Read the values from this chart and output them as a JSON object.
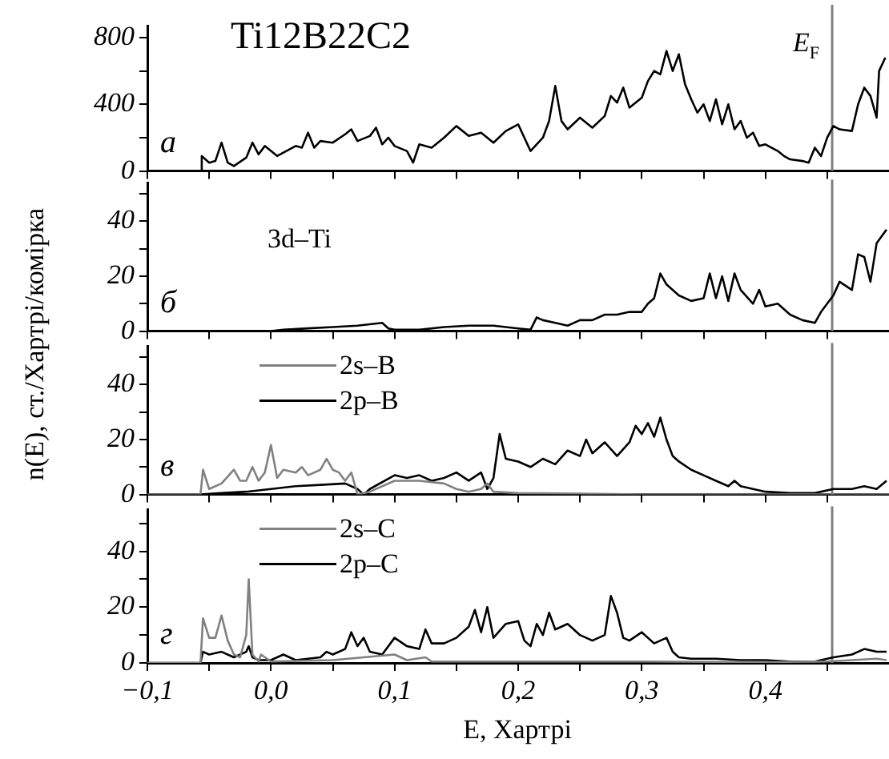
{
  "chart_data": [
    {
      "type": "line",
      "title": "Ti12B22C2",
      "ylabel": "n(E), ст./Хартрі/комірка",
      "annotations": [
        "а"
      ],
      "xlim": [
        -0.1,
        0.5
      ],
      "xticks": [
        {
          "value": -0.1,
          "label": null
        },
        {
          "value": -0.05,
          "label": null
        },
        {
          "value": 0,
          "label": null
        },
        {
          "value": 0.05,
          "label": null
        },
        {
          "value": 0.1,
          "label": null
        },
        {
          "value": 0.15,
          "label": null
        },
        {
          "value": 0.2,
          "label": null
        },
        {
          "value": 0.25,
          "label": null
        },
        {
          "value": 0.3,
          "label": null
        },
        {
          "value": 0.35,
          "label": null
        },
        {
          "value": 0.4,
          "label": null
        },
        {
          "value": 0.45,
          "label": null
        }
      ],
      "ylim": [
        0,
        870
      ],
      "yticks": [
        0,
        {
          "value": 200,
          "label": null
        },
        400,
        {
          "value": 600,
          "label": null
        },
        800
      ],
      "tick_labels": "y",
      "ref_lines": [
        {
          "axis": "x",
          "value": 0.454,
          "label": "E$_{F}$",
          "color": "#808080"
        }
      ],
      "series": [
        {
          "color": "#000000",
          "x": [
            -0.1,
            -0.057,
            -0.056,
            -0.05,
            -0.045,
            -0.04,
            -0.035,
            -0.03,
            -0.02,
            -0.015,
            -0.01,
            -0.005,
            0.0,
            0.005,
            0.01,
            0.02,
            0.025,
            0.03,
            0.035,
            0.04,
            0.05,
            0.06,
            0.065,
            0.07,
            0.08,
            0.085,
            0.09,
            0.095,
            0.1,
            0.11,
            0.115,
            0.12,
            0.13,
            0.14,
            0.15,
            0.16,
            0.17,
            0.18,
            0.19,
            0.2,
            0.205,
            0.21,
            0.22,
            0.225,
            0.23,
            0.235,
            0.24,
            0.25,
            0.26,
            0.27,
            0.275,
            0.28,
            0.285,
            0.29,
            0.3,
            0.305,
            0.31,
            0.315,
            0.32,
            0.325,
            0.33,
            0.335,
            0.34,
            0.345,
            0.35,
            0.355,
            0.36,
            0.365,
            0.37,
            0.375,
            0.38,
            0.385,
            0.39,
            0.395,
            0.4,
            0.41,
            0.415,
            0.42,
            0.43,
            0.435,
            0.44,
            0.445,
            0.45,
            0.455,
            0.46,
            0.47,
            0.475,
            0.48,
            0.485,
            0.49,
            0.492,
            0.497
          ],
          "values": [
            0,
            0,
            90,
            50,
            60,
            170,
            50,
            30,
            80,
            170,
            100,
            150,
            120,
            90,
            110,
            150,
            140,
            230,
            140,
            180,
            170,
            220,
            250,
            180,
            210,
            260,
            160,
            200,
            150,
            120,
            50,
            160,
            140,
            200,
            270,
            210,
            230,
            170,
            240,
            280,
            200,
            120,
            200,
            300,
            510,
            300,
            250,
            320,
            260,
            330,
            450,
            410,
            500,
            380,
            440,
            540,
            600,
            580,
            720,
            600,
            700,
            520,
            430,
            350,
            400,
            300,
            430,
            280,
            400,
            250,
            300,
            200,
            230,
            150,
            160,
            120,
            90,
            70,
            60,
            50,
            140,
            90,
            200,
            270,
            250,
            240,
            400,
            500,
            450,
            320,
            600,
            680
          ]
        }
      ]
    },
    {
      "type": "line",
      "annotations": [
        "б"
      ],
      "xlim": [
        -0.1,
        0.5
      ],
      "xticks": [
        {
          "value": -0.1,
          "label": null
        },
        {
          "value": -0.05,
          "label": null
        },
        {
          "value": 0,
          "label": null
        },
        {
          "value": 0.05,
          "label": null
        },
        {
          "value": 0.1,
          "label": null
        },
        {
          "value": 0.15,
          "label": null
        },
        {
          "value": 0.2,
          "label": null
        },
        {
          "value": 0.25,
          "label": null
        },
        {
          "value": 0.3,
          "label": null
        },
        {
          "value": 0.35,
          "label": null
        },
        {
          "value": 0.4,
          "label": null
        },
        {
          "value": 0.45,
          "label": null
        }
      ],
      "ylim": [
        0,
        54
      ],
      "yticks": [
        0,
        {
          "value": 10,
          "label": null
        },
        20,
        {
          "value": 30,
          "label": null
        },
        40,
        {
          "value": 50,
          "label": null
        }
      ],
      "tick_labels": "y",
      "ref_lines": [
        {
          "axis": "x",
          "value": 0.454,
          "color": "#808080"
        }
      ],
      "series": [
        {
          "name": "3d–Ti",
          "color": "#000000",
          "x": [
            -0.1,
            -0.057,
            0.0,
            0.01,
            0.03,
            0.05,
            0.07,
            0.09,
            0.095,
            0.1,
            0.12,
            0.14,
            0.16,
            0.18,
            0.19,
            0.2,
            0.21,
            0.215,
            0.22,
            0.23,
            0.24,
            0.25,
            0.26,
            0.27,
            0.28,
            0.29,
            0.3,
            0.305,
            0.31,
            0.315,
            0.32,
            0.33,
            0.34,
            0.35,
            0.355,
            0.36,
            0.365,
            0.37,
            0.375,
            0.38,
            0.39,
            0.395,
            0.4,
            0.41,
            0.42,
            0.43,
            0.44,
            0.445,
            0.455,
            0.46,
            0.47,
            0.475,
            0.48,
            0.485,
            0.49,
            0.498
          ],
          "values": [
            0,
            0,
            0,
            0.5,
            1,
            1.5,
            2,
            3,
            1,
            0.5,
            0.5,
            1.5,
            2,
            2,
            1.5,
            1,
            0.5,
            5,
            4,
            3,
            2,
            4,
            4,
            6,
            6,
            7,
            7,
            10,
            12,
            21,
            17,
            13,
            11,
            12,
            21,
            12,
            20,
            11,
            21,
            15,
            10,
            15,
            9,
            10,
            6,
            4,
            3,
            7,
            13,
            18,
            15,
            28,
            27,
            18,
            32,
            37
          ]
        }
      ]
    },
    {
      "type": "line",
      "annotations": [
        "в"
      ],
      "legend": "top left",
      "xlim": [
        -0.1,
        0.5
      ],
      "xticks": [
        {
          "value": -0.1,
          "label": null
        },
        {
          "value": -0.05,
          "label": null
        },
        {
          "value": 0,
          "label": null
        },
        {
          "value": 0.05,
          "label": null
        },
        {
          "value": 0.1,
          "label": null
        },
        {
          "value": 0.15,
          "label": null
        },
        {
          "value": 0.2,
          "label": null
        },
        {
          "value": 0.25,
          "label": null
        },
        {
          "value": 0.3,
          "label": null
        },
        {
          "value": 0.35,
          "label": null
        },
        {
          "value": 0.4,
          "label": null
        },
        {
          "value": 0.45,
          "label": null
        }
      ],
      "ylim": [
        0,
        54
      ],
      "yticks": [
        0,
        {
          "value": 10,
          "label": null
        },
        20,
        {
          "value": 30,
          "label": null
        },
        40,
        {
          "value": 50,
          "label": null
        }
      ],
      "tick_labels": "y",
      "ref_lines": [
        {
          "axis": "x",
          "value": 0.454,
          "color": "#808080"
        }
      ],
      "series": [
        {
          "name": "2s–B",
          "color": "#808080",
          "x": [
            -0.1,
            -0.057,
            -0.055,
            -0.05,
            -0.04,
            -0.03,
            -0.025,
            -0.02,
            -0.015,
            -0.01,
            -0.005,
            0.0,
            0.005,
            0.01,
            0.02,
            0.025,
            0.03,
            0.04,
            0.045,
            0.05,
            0.055,
            0.06,
            0.065,
            0.07,
            0.08,
            0.1,
            0.12,
            0.14,
            0.15,
            0.16,
            0.17,
            0.175,
            0.18,
            0.2,
            0.25,
            0.3,
            0.35,
            0.4,
            0.5
          ],
          "values": [
            0,
            0,
            9,
            2,
            4,
            9,
            5,
            5,
            10,
            5,
            8,
            18,
            6,
            9,
            8,
            10,
            7,
            9,
            13,
            9,
            8,
            5,
            8,
            0,
            1,
            5,
            5,
            4,
            2,
            1,
            2,
            4,
            1,
            0.5,
            0.3,
            0,
            0,
            0,
            0
          ]
        },
        {
          "name": "2p–B",
          "color": "#000000",
          "x": [
            -0.1,
            -0.057,
            -0.04,
            -0.02,
            0.0,
            0.02,
            0.04,
            0.06,
            0.07,
            0.075,
            0.08,
            0.1,
            0.11,
            0.12,
            0.13,
            0.14,
            0.15,
            0.16,
            0.17,
            0.175,
            0.18,
            0.185,
            0.19,
            0.2,
            0.21,
            0.22,
            0.23,
            0.24,
            0.25,
            0.255,
            0.26,
            0.27,
            0.28,
            0.29,
            0.295,
            0.3,
            0.305,
            0.31,
            0.315,
            0.32,
            0.325,
            0.33,
            0.34,
            0.35,
            0.36,
            0.37,
            0.375,
            0.38,
            0.39,
            0.4,
            0.42,
            0.44,
            0.455,
            0.47,
            0.48,
            0.49,
            0.498
          ],
          "values": [
            0,
            0,
            0.5,
            1,
            2,
            3,
            3.5,
            4,
            2,
            0,
            2,
            7,
            6,
            7,
            5,
            6,
            8,
            5,
            8,
            2,
            6,
            22,
            13,
            12,
            10,
            13,
            11,
            16,
            14,
            20,
            15,
            19,
            14,
            19,
            25,
            22,
            26,
            21,
            28,
            20,
            14,
            12,
            9,
            7,
            5,
            3,
            5,
            3,
            2,
            1,
            0.5,
            0.5,
            2,
            2,
            3,
            2,
            5
          ]
        }
      ]
    },
    {
      "type": "line",
      "xlabel": "E, Хартрі",
      "annotations": [
        "г"
      ],
      "legend": "top left",
      "xlim": [
        -0.1,
        0.5
      ],
      "xticks": [
        {
          "value": -0.1,
          "label": "−0,1"
        },
        {
          "value": -0.05,
          "label": null
        },
        {
          "value": 0,
          "label": "0,0"
        },
        {
          "value": 0.05,
          "label": null
        },
        {
          "value": 0.1,
          "label": "0,1"
        },
        {
          "value": 0.15,
          "label": null
        },
        {
          "value": 0.2,
          "label": "0,2"
        },
        {
          "value": 0.25,
          "label": null
        },
        {
          "value": 0.3,
          "label": "0,3"
        },
        {
          "value": 0.35,
          "label": null
        },
        {
          "value": 0.4,
          "label": "0,4"
        },
        {
          "value": 0.45,
          "label": null
        }
      ],
      "ylim": [
        0,
        55
      ],
      "yticks": [
        0,
        {
          "value": 10,
          "label": null
        },
        20,
        {
          "value": 30,
          "label": null
        },
        40,
        {
          "value": 50,
          "label": null
        }
      ],
      "ref_lines": [
        {
          "axis": "x",
          "value": 0.454,
          "color": "#808080"
        }
      ],
      "series": [
        {
          "name": "2s–C",
          "color": "#808080",
          "x": [
            -0.1,
            -0.057,
            -0.055,
            -0.05,
            -0.045,
            -0.04,
            -0.035,
            -0.03,
            -0.025,
            -0.02,
            -0.018,
            -0.015,
            -0.01,
            -0.008,
            0.0,
            0.05,
            0.1,
            0.11,
            0.125,
            0.13,
            0.2,
            0.3,
            0.4,
            0.45,
            0.49,
            0.498
          ],
          "values": [
            0,
            0,
            16,
            9,
            9,
            17,
            8,
            3,
            2,
            10,
            30,
            3,
            0.5,
            3,
            0.5,
            1,
            3,
            1,
            2,
            0.5,
            0.5,
            0.5,
            0.3,
            0.5,
            1.5,
            1
          ]
        },
        {
          "name": "2p–C",
          "color": "#000000",
          "x": [
            -0.1,
            -0.057,
            -0.055,
            -0.05,
            -0.04,
            -0.03,
            -0.02,
            -0.018,
            -0.015,
            -0.01,
            0.0,
            0.01,
            0.02,
            0.04,
            0.045,
            0.05,
            0.06,
            0.065,
            0.07,
            0.075,
            0.08,
            0.09,
            0.1,
            0.11,
            0.12,
            0.125,
            0.13,
            0.14,
            0.15,
            0.16,
            0.165,
            0.17,
            0.175,
            0.18,
            0.19,
            0.2,
            0.205,
            0.21,
            0.215,
            0.22,
            0.225,
            0.23,
            0.24,
            0.25,
            0.26,
            0.27,
            0.275,
            0.28,
            0.285,
            0.29,
            0.3,
            0.31,
            0.315,
            0.32,
            0.325,
            0.33,
            0.34,
            0.36,
            0.38,
            0.4,
            0.42,
            0.44,
            0.45,
            0.455,
            0.47,
            0.48,
            0.49,
            0.498
          ],
          "values": [
            0,
            0,
            4,
            3,
            4,
            2,
            4,
            6,
            2,
            1,
            1,
            3,
            1,
            2,
            4,
            3,
            5,
            11,
            6,
            9,
            4,
            3,
            9,
            6,
            5,
            12,
            7,
            7,
            9,
            13,
            19,
            11,
            20,
            9,
            14,
            15,
            8,
            6,
            14,
            10,
            18,
            12,
            14,
            10,
            8,
            10,
            24,
            18,
            9,
            8,
            11,
            7,
            8,
            9,
            4,
            2,
            1.5,
            1.5,
            1,
            1,
            0.5,
            0.5,
            1.5,
            2,
            3,
            5,
            4,
            4
          ]
        }
      ]
    }
  ]
}
